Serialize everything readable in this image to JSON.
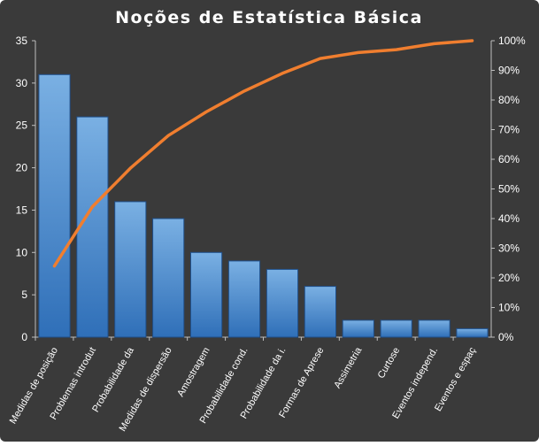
{
  "chart_data": {
    "type": "bar",
    "title": "Noções de Estatística  Básica",
    "categories": [
      "Medidas de posição",
      "Problemas introdut",
      "Probabilidade da",
      "Medidas de dispersão",
      "Amostragem",
      "Probabilidade cond.",
      "Probabilidade da i.",
      "Formas de Aprese",
      "Assimetria",
      "Curtose",
      "Eventos independ.",
      "Eventos e espaç"
    ],
    "series": [
      {
        "type": "bar",
        "axis": "left",
        "values": [
          31,
          26,
          16,
          14,
          10,
          9,
          8,
          6,
          2,
          2,
          2,
          1
        ]
      },
      {
        "type": "line",
        "axis": "right",
        "values": [
          0.24,
          0.44,
          0.57,
          0.68,
          0.76,
          0.83,
          0.89,
          0.94,
          0.96,
          0.97,
          0.99,
          1.0
        ]
      }
    ],
    "ylim": [
      0,
      35
    ],
    "yticks": [
      "0",
      "5",
      "10",
      "15",
      "20",
      "25",
      "30",
      "35"
    ],
    "y2lim": [
      0,
      1
    ],
    "y2ticks": [
      "0%",
      "10%",
      "20%",
      "30%",
      "40%",
      "50%",
      "60%",
      "70%",
      "80%",
      "90%",
      "100%"
    ],
    "grid": false,
    "legend": "none",
    "colors": {
      "background": "#3a3a3a",
      "bar_top": "#7ab0e3",
      "bar_bottom": "#2f6fb8",
      "bar_stroke": "#1f4f8a",
      "line": "#f07e2f",
      "axis": "#bfbfbf",
      "text": "#ffffff"
    }
  }
}
